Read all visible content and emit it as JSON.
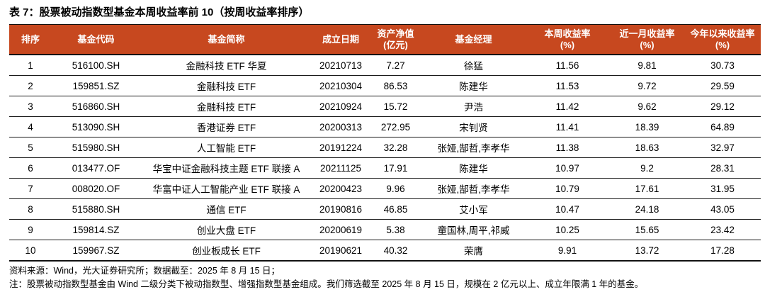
{
  "title": "表 7：股票被动指数型基金本周收益率前 10（按周收益率排序）",
  "colors": {
    "header_bg": "#C7481F",
    "header_text": "#FFFFFF",
    "border": "#111111"
  },
  "table": {
    "headers": [
      "排序",
      "基金代码",
      "基金简称",
      "成立日期",
      "资产净值\n(亿元)",
      "基金经理",
      "本周收益率\n(%)",
      "近一月收益率\n(%)",
      "今年以来收益率\n(%)"
    ],
    "rows": [
      [
        "1",
        "516100.SH",
        "金融科技 ETF 华夏",
        "20210713",
        "7.27",
        "徐猛",
        "11.56",
        "9.81",
        "30.73"
      ],
      [
        "2",
        "159851.SZ",
        "金融科技 ETF",
        "20210304",
        "86.53",
        "陈建华",
        "11.53",
        "9.72",
        "29.59"
      ],
      [
        "3",
        "516860.SH",
        "金融科技 ETF",
        "20210924",
        "15.72",
        "尹浩",
        "11.42",
        "9.62",
        "29.12"
      ],
      [
        "4",
        "513090.SH",
        "香港证券 ETF",
        "20200313",
        "272.95",
        "宋钊贤",
        "11.41",
        "18.39",
        "64.89"
      ],
      [
        "5",
        "515980.SH",
        "人工智能 ETF",
        "20191224",
        "32.28",
        "张娅,郜哲,李孝华",
        "11.38",
        "18.63",
        "32.97"
      ],
      [
        "6",
        "013477.OF",
        "华宝中证金融科技主题 ETF 联接 A",
        "20211125",
        "17.91",
        "陈建华",
        "10.97",
        "9.2",
        "28.31"
      ],
      [
        "7",
        "008020.OF",
        "华富中证人工智能产业 ETF 联接 A",
        "20200423",
        "9.96",
        "张娅,郜哲,李孝华",
        "10.79",
        "17.61",
        "31.95"
      ],
      [
        "8",
        "515880.SH",
        "通信 ETF",
        "20190816",
        "46.85",
        "艾小军",
        "10.47",
        "24.18",
        "43.05"
      ],
      [
        "9",
        "159814.SZ",
        "创业大盘 ETF",
        "20200619",
        "5.38",
        "童国林,周平,祁威",
        "10.25",
        "15.65",
        "23.42"
      ],
      [
        "10",
        "159967.SZ",
        "创业板成长 ETF",
        "20190621",
        "40.32",
        "荣膺",
        "9.91",
        "13.72",
        "17.28"
      ]
    ]
  },
  "footnotes": {
    "source": "资料来源：Wind，光大证券研究所；数据截至：2025 年 8 月 15 日；",
    "note": "注：股票被动指数型基金由 Wind 二级分类下被动指数型、增强指数型基金组成。我们筛选截至 2025 年 8 月 15 日，规模在 2 亿元以上、成立年限满 1 年的基金。"
  }
}
